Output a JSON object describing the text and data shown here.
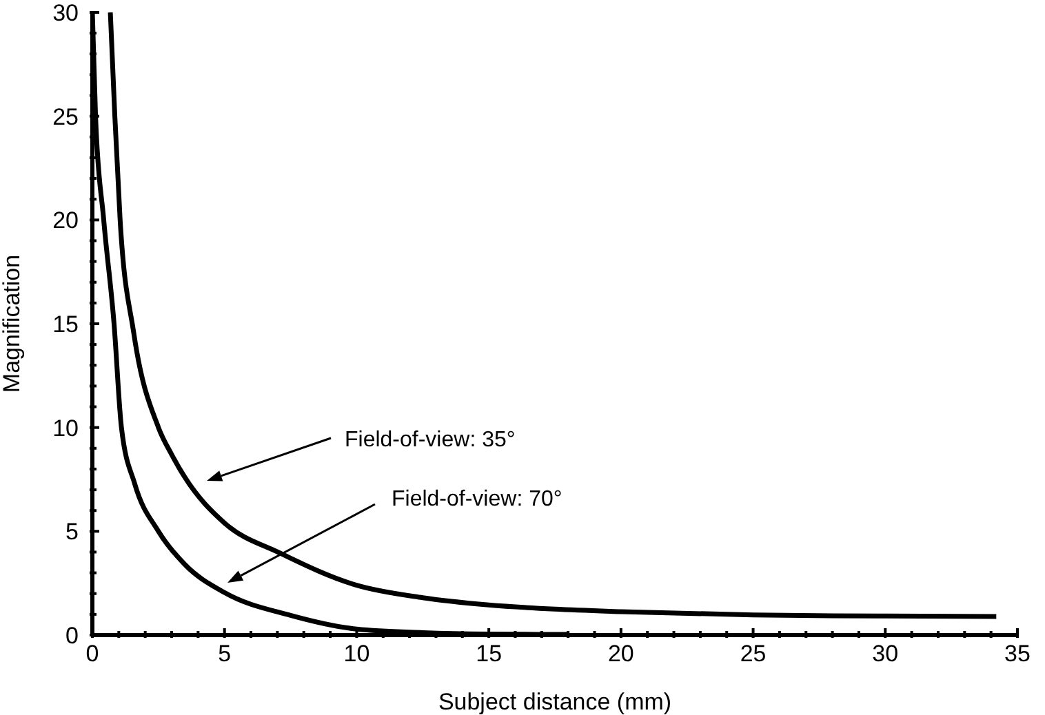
{
  "chart_data": {
    "type": "line",
    "xlabel": "Subject distance (mm)",
    "ylabel": "Magnification",
    "xlim": [
      0,
      35
    ],
    "ylim": [
      0,
      30
    ],
    "xticks": [
      0,
      {
        "value": 1,
        "label": null
      },
      {
        "value": 2,
        "label": null
      },
      {
        "value": 3,
        "label": null
      },
      {
        "value": 4,
        "label": null
      },
      5,
      {
        "value": 6,
        "label": null
      },
      {
        "value": 7,
        "label": null
      },
      {
        "value": 8,
        "label": null
      },
      {
        "value": 9,
        "label": null
      },
      10,
      {
        "value": 11,
        "label": null
      },
      {
        "value": 12,
        "label": null
      },
      {
        "value": 13,
        "label": null
      },
      {
        "value": 14,
        "label": null
      },
      15,
      {
        "value": 16,
        "label": null
      },
      {
        "value": 17,
        "label": null
      },
      {
        "value": 18,
        "label": null
      },
      {
        "value": 19,
        "label": null
      },
      20,
      {
        "value": 21,
        "label": null
      },
      {
        "value": 22,
        "label": null
      },
      {
        "value": 23,
        "label": null
      },
      {
        "value": 24,
        "label": null
      },
      25,
      {
        "value": 26,
        "label": null
      },
      {
        "value": 27,
        "label": null
      },
      {
        "value": 28,
        "label": null
      },
      {
        "value": 29,
        "label": null
      },
      30,
      {
        "value": 31,
        "label": null
      },
      {
        "value": 32,
        "label": null
      },
      {
        "value": 33,
        "label": null
      },
      {
        "value": 34,
        "label": null
      },
      35
    ],
    "yticks": [
      0,
      {
        "value": 1,
        "label": null
      },
      {
        "value": 2,
        "label": null
      },
      {
        "value": 3,
        "label": null
      },
      {
        "value": 4,
        "label": null
      },
      5,
      {
        "value": 6,
        "label": null
      },
      {
        "value": 7,
        "label": null
      },
      {
        "value": 8,
        "label": null
      },
      {
        "value": 9,
        "label": null
      },
      10,
      {
        "value": 11,
        "label": null
      },
      {
        "value": 12,
        "label": null
      },
      {
        "value": 13,
        "label": null
      },
      {
        "value": 14,
        "label": null
      },
      15,
      {
        "value": 16,
        "label": null
      },
      {
        "value": 17,
        "label": null
      },
      {
        "value": 18,
        "label": null
      },
      {
        "value": 19,
        "label": null
      },
      20,
      {
        "value": 21,
        "label": null
      },
      {
        "value": 22,
        "label": null
      },
      {
        "value": 23,
        "label": null
      },
      {
        "value": 24,
        "label": null
      },
      25,
      {
        "value": 26,
        "label": null
      },
      {
        "value": 27,
        "label": null
      },
      {
        "value": 28,
        "label": null
      },
      {
        "value": 29,
        "label": null
      },
      30
    ],
    "grid": false,
    "marker": "none",
    "line_style": "solid",
    "series": [
      {
        "color": "#000000",
        "x": [
          0.68,
          0.85,
          1.05,
          1.56,
          2.5,
          3,
          3.5,
          5,
          7.1,
          10,
          12.5,
          15,
          17.5,
          20,
          25,
          30,
          34.2
        ],
        "values": [
          30,
          25,
          20,
          14.6,
          10,
          8.7,
          7.6,
          5.4,
          3.95,
          2.4,
          1.8,
          1.45,
          1.25,
          1.13,
          0.97,
          0.92,
          0.9
        ]
      },
      {
        "color": "#000000",
        "x": [
          0,
          0.12,
          0.43,
          0.82,
          1.1,
          1.6,
          2.5,
          3.5,
          5,
          7.5,
          10,
          12.5,
          15,
          18
        ],
        "values": [
          30,
          25,
          20,
          15,
          10,
          7.3,
          5,
          3.4,
          2.05,
          0.95,
          0.29,
          0.12,
          0.05,
          0.03
        ]
      }
    ],
    "annotations": [
      "Field-of-view: 35°",
      "Field-of-view: 70°"
    ]
  }
}
